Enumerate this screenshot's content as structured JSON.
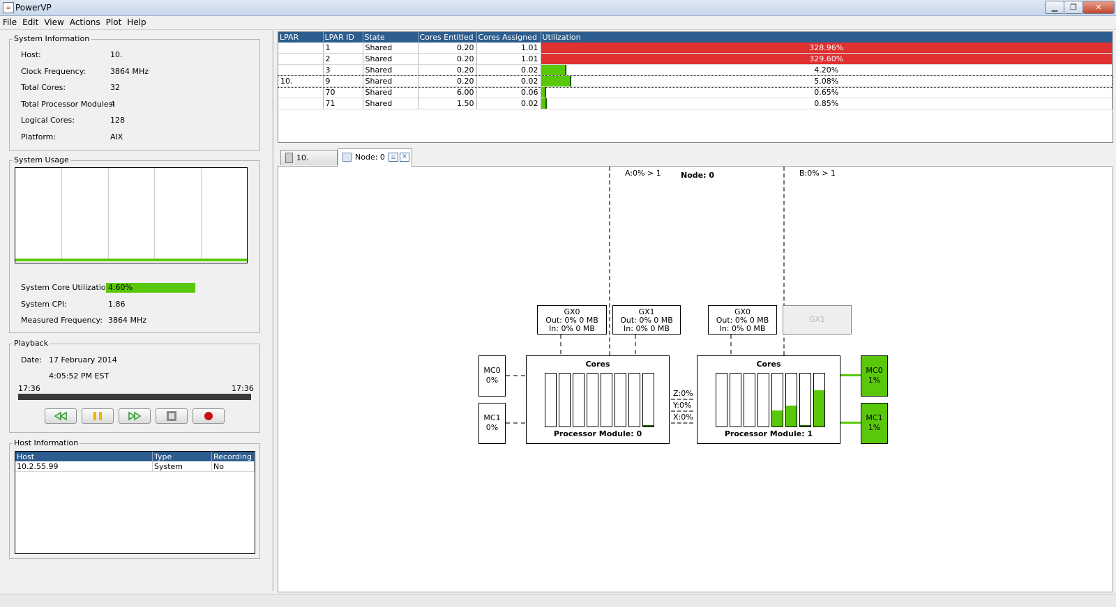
{
  "window": {
    "title": "PowerVP"
  },
  "menu": [
    "File",
    "Edit",
    "View",
    "Actions",
    "Plot",
    "Help"
  ],
  "system_info": {
    "title": "System Information",
    "rows": [
      {
        "label": "Host:",
        "value": "10."
      },
      {
        "label": "Clock Frequency:",
        "value": "3864 MHz"
      },
      {
        "label": "Total Cores:",
        "value": "32"
      },
      {
        "label": "Total Processor Modules:",
        "value": "4"
      },
      {
        "label": "Logical Cores:",
        "value": "128"
      },
      {
        "label": "Platform:",
        "value": "AIX"
      }
    ]
  },
  "system_usage": {
    "title": "System Usage",
    "core_util_label": "System Core Utilization:",
    "core_util_value": "4.60%",
    "core_util_fraction": 0.046,
    "cpi_label": "System CPI:",
    "cpi_value": "1.86",
    "freq_label": "Measured Frequency:",
    "freq_value": "3864 MHz"
  },
  "playback": {
    "title": "Playback",
    "date_label": "Date:",
    "date_value": "17 February 2014",
    "time_value": "4:05:52 PM EST",
    "start": "17:36",
    "end": "17:36"
  },
  "host_info": {
    "title": "Host Information",
    "columns": [
      "Host",
      "Type",
      "Recording"
    ],
    "rows": [
      [
        "10.2.55.99",
        "System",
        "No"
      ]
    ]
  },
  "lpar_table": {
    "columns": [
      "LPAR",
      "LPAR ID",
      "State",
      "Cores Entitled",
      "Cores Assigned",
      "Utilization"
    ],
    "rows": [
      {
        "lpar": "",
        "id": "1",
        "state": "Shared",
        "entitled": "0.20",
        "assigned": "1.01",
        "util": "328.96%",
        "util_fraction": 1.0,
        "color": "#e03030"
      },
      {
        "lpar": "",
        "id": "2",
        "state": "Shared",
        "entitled": "0.20",
        "assigned": "1.01",
        "util": "329.60%",
        "util_fraction": 1.0,
        "color": "#e03030"
      },
      {
        "lpar": "",
        "id": "3",
        "state": "Shared",
        "entitled": "0.20",
        "assigned": "0.02",
        "util": "4.20%",
        "util_fraction": 0.042,
        "color": "#5ac80a"
      },
      {
        "lpar": "10.",
        "id": "9",
        "state": "Shared",
        "entitled": "0.20",
        "assigned": "0.02",
        "util": "5.08%",
        "util_fraction": 0.051,
        "color": "#5ac80a"
      },
      {
        "lpar": "",
        "id": "70",
        "state": "Shared",
        "entitled": "6.00",
        "assigned": "0.06",
        "util": "0.65%",
        "util_fraction": 0.0065,
        "color": "#5ac80a"
      },
      {
        "lpar": "",
        "id": "71",
        "state": "Shared",
        "entitled": "1.50",
        "assigned": "0.02",
        "util": "0.85%",
        "util_fraction": 0.0085,
        "color": "#5ac80a"
      }
    ]
  },
  "tabs": [
    {
      "label": "10."
    },
    {
      "label": "Node: 0"
    }
  ],
  "diagram": {
    "node_label": "Node: 0",
    "link_a": "A:0% > 1",
    "link_b": "B:0% > 1",
    "zxy": [
      "Z:0%",
      "Y:0%",
      "X:0%"
    ],
    "module0": {
      "title": "Cores",
      "name": "Processor Module: 0",
      "core_levels": [
        0,
        0,
        0,
        0,
        0,
        0,
        0,
        0.03
      ],
      "gx": [
        {
          "name": "GX0",
          "out": "Out: 0% 0 MB",
          "in": "In: 0% 0 MB"
        },
        {
          "name": "GX1",
          "out": "Out: 0% 0 MB",
          "in": "In: 0% 0 MB"
        }
      ],
      "mc": [
        {
          "name": "MC0",
          "value": "0%"
        },
        {
          "name": "MC1",
          "value": "0%"
        }
      ]
    },
    "module1": {
      "title": "Cores",
      "name": "Processor Module: 1",
      "core_levels": [
        0,
        0,
        0,
        0,
        0.3,
        0.4,
        0.03,
        0.68
      ],
      "gx": [
        {
          "name": "GX0",
          "out": "Out: 0% 0 MB",
          "in": "In: 0% 0 MB"
        },
        {
          "name": "GX1"
        }
      ],
      "mc": [
        {
          "name": "MC0",
          "value": "1%"
        },
        {
          "name": "MC1",
          "value": "1%"
        }
      ]
    },
    "active_color": "#5ac80a"
  }
}
